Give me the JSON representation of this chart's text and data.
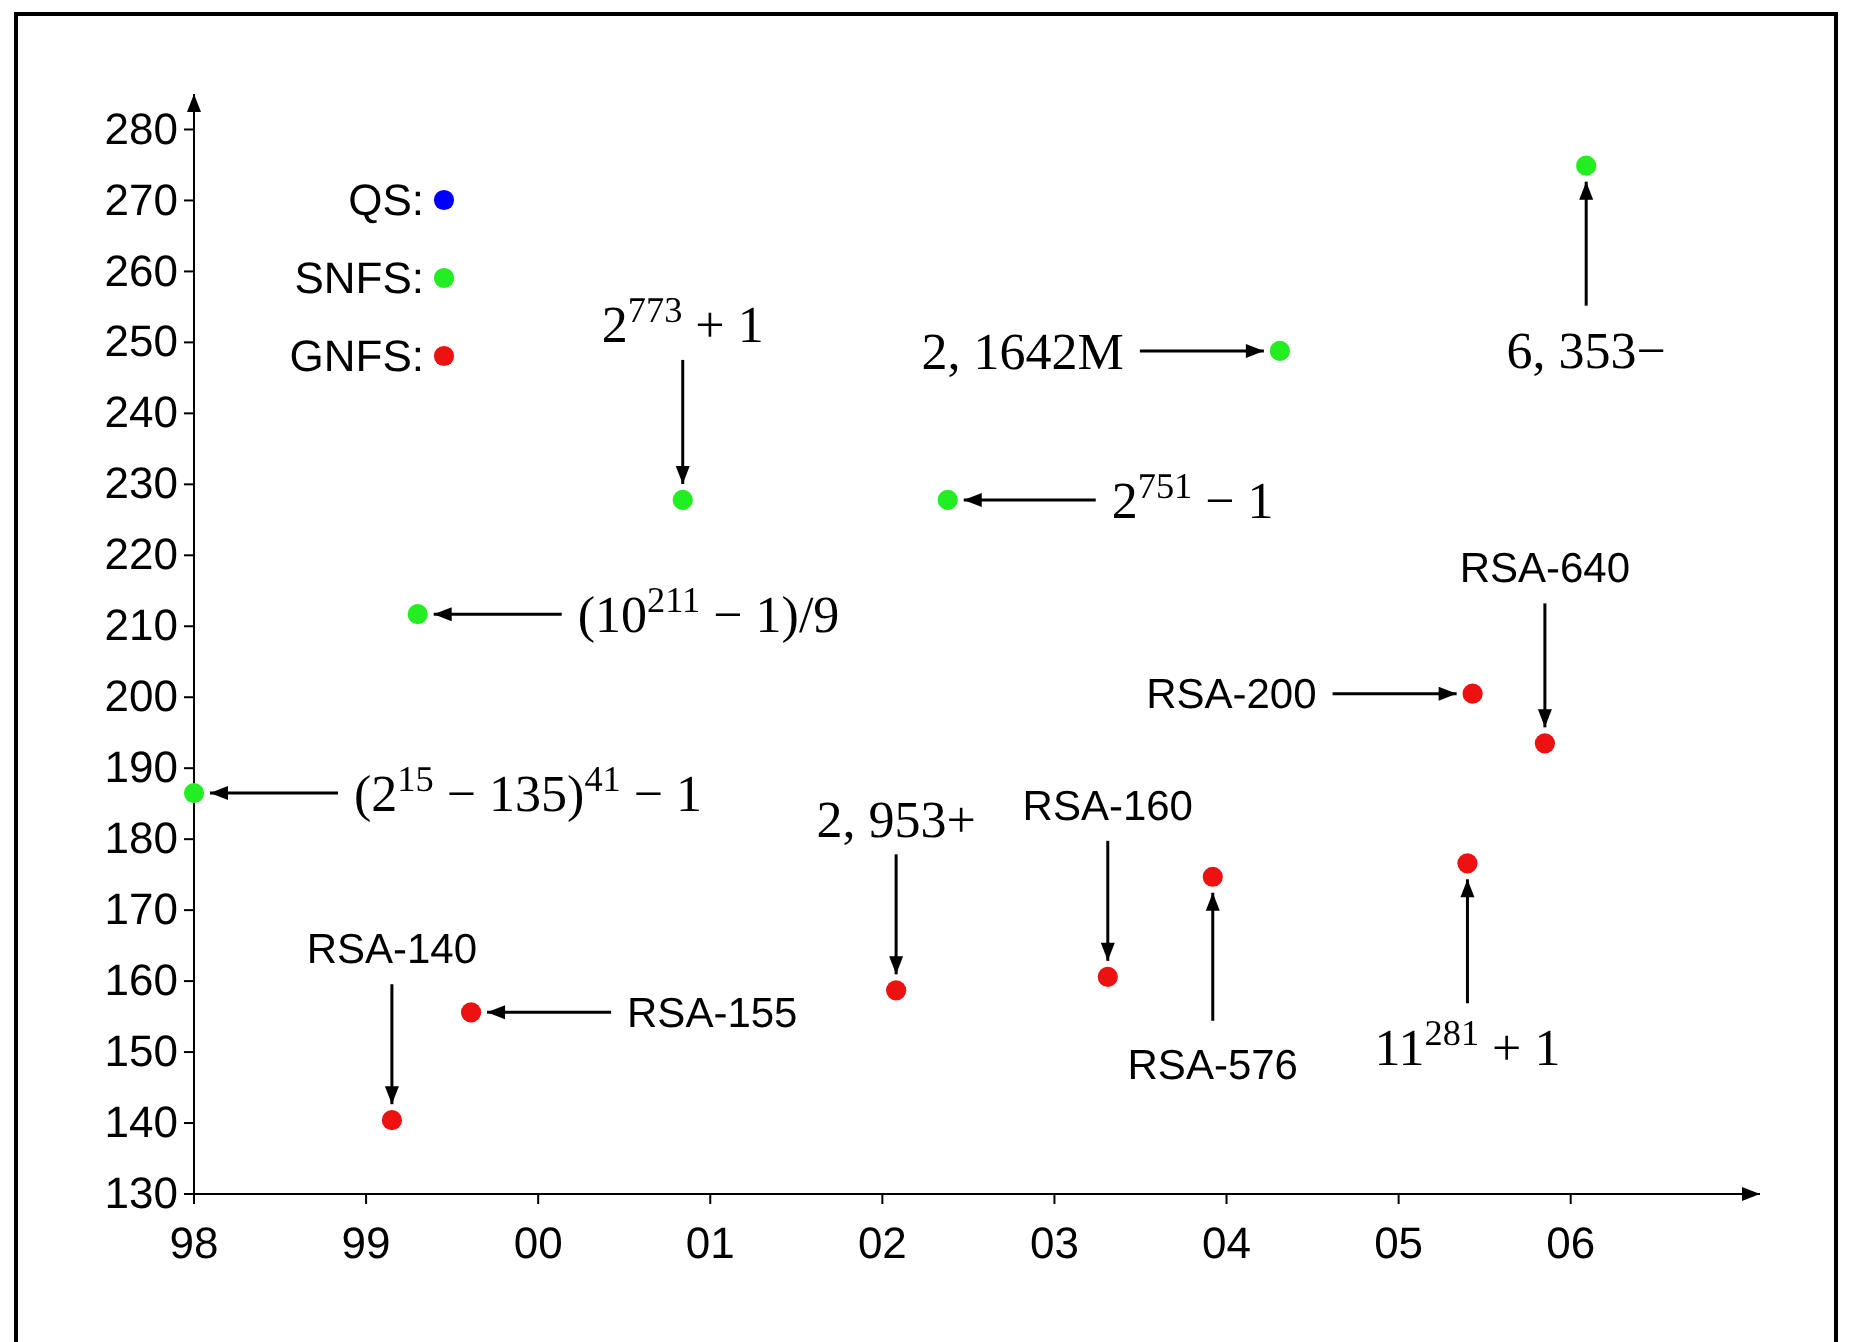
{
  "chart_data": {
    "type": "scatter",
    "xlim": [
      1998,
      2007.1
    ],
    "ylim": [
      130,
      285
    ],
    "xticks": [
      {
        "value": 1998,
        "label": "98"
      },
      {
        "value": 1999,
        "label": "99"
      },
      {
        "value": 2000,
        "label": "00"
      },
      {
        "value": 2001,
        "label": "01"
      },
      {
        "value": 2002,
        "label": "02"
      },
      {
        "value": 2003,
        "label": "03"
      },
      {
        "value": 2004,
        "label": "04"
      },
      {
        "value": 2005,
        "label": "05"
      },
      {
        "value": 2006,
        "label": "06"
      }
    ],
    "yticks": [
      130,
      140,
      150,
      160,
      170,
      180,
      190,
      200,
      210,
      220,
      230,
      240,
      250,
      260,
      270,
      280
    ],
    "grid": false,
    "legend": "top left",
    "marker": "circle",
    "series": [
      {
        "name": "QS:",
        "color": "#0000ff"
      },
      {
        "name": "SNFS:",
        "color": "#22ee22",
        "x": [
          1998.0,
          1999.3,
          2000.84,
          2002.38,
          2004.31,
          2006.09
        ],
        "values": [
          186.5,
          211.7,
          227.8,
          227.8,
          248.8,
          274.9
        ]
      },
      {
        "name": "GNFS:",
        "color": "#ee1111",
        "x": [
          1999.15,
          1999.61,
          2002.08,
          2003.31,
          2003.92,
          2005.4,
          2005.43,
          2005.85
        ],
        "values": [
          140.4,
          155.6,
          158.7,
          160.6,
          174.7,
          176.6,
          200.5,
          193.5
        ]
      }
    ],
    "annotations": [
      {
        "text": "(2$^{15}$ − 135)$^{41}$ − 1",
        "x": 1998.0,
        "y": 186.5
      },
      {
        "text": "(10$^{211}$ − 1)/9",
        "x": 1999.3,
        "y": 211.7
      },
      {
        "text": "2$^{773}$ + 1",
        "x": 2000.84,
        "y": 227.8
      },
      {
        "text": "2, 1642M",
        "x": 2004.31,
        "y": 248.8
      },
      {
        "text": "2$^{751}$ − 1",
        "x": 2002.38,
        "y": 227.8
      },
      {
        "text": "6, 353−",
        "x": 2006.09,
        "y": 274.9
      },
      {
        "text": "RSA-140",
        "x": 1999.15,
        "y": 140.4
      },
      {
        "text": "RSA-155",
        "x": 1999.61,
        "y": 155.6
      },
      {
        "text": "2, 953+",
        "x": 2002.08,
        "y": 158.7
      },
      {
        "text": "RSA-160",
        "x": 2003.31,
        "y": 160.6
      },
      {
        "text": "RSA-576",
        "x": 2003.92,
        "y": 174.7
      },
      {
        "text": "11$^{281}$ + 1",
        "x": 2005.4,
        "y": 176.6
      },
      {
        "text": "RSA-200",
        "x": 2005.43,
        "y": 200.5
      },
      {
        "text": "RSA-640",
        "x": 2005.85,
        "y": 193.5
      }
    ]
  }
}
